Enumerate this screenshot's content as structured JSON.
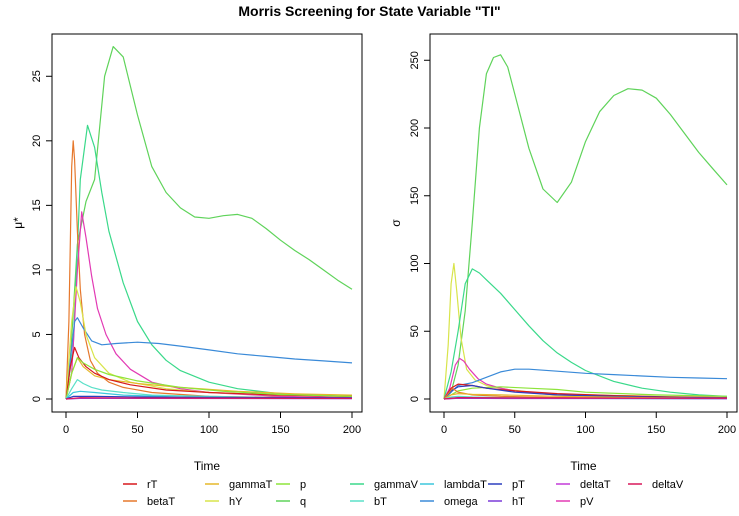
{
  "title": "Morris Screening for State Variable \"TI\"",
  "legend": [
    {
      "name": "rT",
      "color": "#d7191c"
    },
    {
      "name": "betaT",
      "color": "#e6782c"
    },
    {
      "name": "gammaT",
      "color": "#e5b82a"
    },
    {
      "name": "hY",
      "color": "#d8e44a"
    },
    {
      "name": "p",
      "color": "#8de43a"
    },
    {
      "name": "q",
      "color": "#5fd35a"
    },
    {
      "name": "gammaV",
      "color": "#3ad98a"
    },
    {
      "name": "bT",
      "color": "#5ae0c8"
    },
    {
      "name": "lambdaT",
      "color": "#3cc7dc"
    },
    {
      "name": "omega",
      "color": "#3a8ad8"
    },
    {
      "name": "pT",
      "color": "#2c3fbf"
    },
    {
      "name": "hT",
      "color": "#7a3ad8"
    },
    {
      "name": "deltaT",
      "color": "#c23ad8"
    },
    {
      "name": "pV",
      "color": "#e23ab4"
    },
    {
      "name": "deltaV",
      "color": "#d8195a"
    }
  ],
  "chart_data": [
    {
      "type": "line",
      "xlabel": "Time",
      "ylabel": "μ*",
      "xlim": [
        0,
        200
      ],
      "ylim": [
        0,
        27.5
      ],
      "xticks": [
        "0",
        "50",
        "100",
        "150",
        "200"
      ],
      "yticks": [
        "0",
        "5",
        "10",
        "15",
        "20",
        "25"
      ],
      "series": [
        {
          "name": "q",
          "color": "#5fd35a",
          "x": [
            0,
            3,
            8,
            14,
            20,
            27,
            33,
            40,
            50,
            60,
            70,
            80,
            90,
            100,
            110,
            120,
            130,
            140,
            150,
            160,
            170,
            180,
            190,
            200
          ],
          "y": [
            0,
            3,
            12,
            15.3,
            17,
            25,
            27.3,
            26.5,
            22,
            18,
            16,
            14.8,
            14.1,
            14,
            14.2,
            14.3,
            14,
            13.2,
            12.3,
            11.5,
            10.8,
            10,
            9.2,
            8.5
          ]
        },
        {
          "name": "gammaV",
          "color": "#3ad98a",
          "x": [
            0,
            5,
            10,
            15,
            20,
            25,
            30,
            40,
            50,
            60,
            70,
            80,
            100,
            120,
            150,
            200
          ],
          "y": [
            0,
            4,
            17,
            21.2,
            19.5,
            16,
            13,
            9,
            6,
            4.2,
            3,
            2.2,
            1.3,
            0.8,
            0.4,
            0.2
          ]
        },
        {
          "name": "betaT",
          "color": "#e6782c",
          "x": [
            0,
            2,
            4,
            5,
            6,
            8,
            10,
            13,
            17,
            22,
            30,
            40,
            60,
            100,
            200
          ],
          "y": [
            0,
            6,
            18,
            20,
            18.5,
            13,
            8.5,
            5,
            3,
            2,
            1.3,
            0.9,
            0.5,
            0.2,
            0.05
          ]
        },
        {
          "name": "pV",
          "color": "#e23ab4",
          "x": [
            0,
            4,
            8,
            11,
            14,
            18,
            22,
            28,
            35,
            45,
            60,
            80,
            100,
            150,
            200
          ],
          "y": [
            0,
            2,
            10,
            14.5,
            12.5,
            9.5,
            7,
            5,
            3.5,
            2.3,
            1.3,
            0.8,
            0.5,
            0.2,
            0.1
          ]
        },
        {
          "name": "omega",
          "color": "#3a8ad8",
          "x": [
            0,
            3,
            6,
            8,
            12,
            18,
            25,
            35,
            50,
            65,
            80,
            100,
            120,
            140,
            160,
            180,
            200
          ],
          "y": [
            0,
            3,
            6,
            6.3,
            5.5,
            4.5,
            4.2,
            4.3,
            4.4,
            4.3,
            4.1,
            3.8,
            3.5,
            3.3,
            3.1,
            2.95,
            2.8
          ]
        },
        {
          "name": "hY",
          "color": "#d8e44a",
          "x": [
            0,
            4,
            7,
            10,
            14,
            20,
            30,
            45,
            70,
            100,
            150,
            200
          ],
          "y": [
            0,
            6,
            8.7,
            7.5,
            5,
            3.2,
            2,
            1.3,
            0.8,
            0.5,
            0.3,
            0.2
          ]
        },
        {
          "name": "gammaT",
          "color": "#e5b82a",
          "x": [
            0,
            4,
            8,
            12,
            20,
            30,
            50,
            80,
            120,
            160,
            200
          ],
          "y": [
            0,
            2,
            3.2,
            2.5,
            1.8,
            1.5,
            1.2,
            0.9,
            0.6,
            0.4,
            0.3
          ]
        },
        {
          "name": "rT",
          "color": "#d7191c",
          "x": [
            0,
            3,
            6,
            9,
            14,
            20,
            30,
            45,
            70,
            100,
            150,
            200
          ],
          "y": [
            0,
            2.5,
            4,
            3.2,
            2.5,
            2,
            1.5,
            1.1,
            0.7,
            0.5,
            0.3,
            0.2
          ]
        },
        {
          "name": "p",
          "color": "#8de43a",
          "x": [
            0,
            4,
            8,
            12,
            20,
            30,
            50,
            80,
            110,
            150,
            200
          ],
          "y": [
            0,
            2,
            3.2,
            2.8,
            2.3,
            1.9,
            1.4,
            0.9,
            0.6,
            0.35,
            0.2
          ]
        },
        {
          "name": "bT",
          "color": "#5ae0c8",
          "x": [
            0,
            4,
            8,
            12,
            18,
            25,
            40,
            60,
            100,
            150,
            200
          ],
          "y": [
            0,
            0.8,
            1.5,
            1.2,
            0.9,
            0.7,
            0.5,
            0.3,
            0.2,
            0.1,
            0.05
          ]
        },
        {
          "name": "lambdaT",
          "color": "#3cc7dc",
          "x": [
            0,
            5,
            10,
            20,
            40,
            80,
            200
          ],
          "y": [
            0,
            0.5,
            0.6,
            0.5,
            0.3,
            0.15,
            0.05
          ]
        },
        {
          "name": "pT",
          "color": "#2c3fbf",
          "x": [
            0,
            5,
            20,
            60,
            120,
            200
          ],
          "y": [
            0,
            0.2,
            0.2,
            0.15,
            0.12,
            0.1
          ]
        },
        {
          "name": "hT",
          "color": "#7a3ad8",
          "x": [
            0,
            10,
            50,
            200
          ],
          "y": [
            0,
            0.05,
            0.05,
            0.03
          ]
        },
        {
          "name": "deltaT",
          "color": "#c23ad8",
          "x": [
            0,
            10,
            50,
            200
          ],
          "y": [
            0,
            0.08,
            0.06,
            0.04
          ]
        },
        {
          "name": "deltaV",
          "color": "#d8195a",
          "x": [
            0,
            10,
            50,
            200
          ],
          "y": [
            0,
            0.1,
            0.08,
            0.05
          ]
        }
      ]
    },
    {
      "type": "line",
      "xlabel": "Time",
      "ylabel": "σ",
      "xlim": [
        0,
        200
      ],
      "ylim": [
        0,
        262
      ],
      "xticks": [
        "0",
        "50",
        "100",
        "150",
        "200"
      ],
      "yticks": [
        "0",
        "50",
        "100",
        "150",
        "200",
        "250"
      ],
      "series": [
        {
          "name": "q",
          "color": "#5fd35a",
          "x": [
            0,
            5,
            10,
            15,
            20,
            25,
            30,
            35,
            40,
            45,
            50,
            60,
            70,
            80,
            90,
            100,
            110,
            120,
            130,
            140,
            150,
            160,
            170,
            180,
            190,
            200
          ],
          "y": [
            0,
            5,
            25,
            65,
            130,
            200,
            240,
            252,
            254,
            245,
            225,
            185,
            155,
            145,
            160,
            190,
            212,
            224,
            229,
            228,
            222,
            210,
            196,
            182,
            170,
            158
          ]
        },
        {
          "name": "hY",
          "color": "#d8e44a",
          "x": [
            0,
            3,
            5,
            7,
            9,
            12,
            16,
            22,
            30,
            45,
            70,
            100,
            150,
            200
          ],
          "y": [
            0,
            40,
            85,
            100,
            80,
            45,
            22,
            14,
            10,
            7,
            4,
            3,
            2,
            1
          ]
        },
        {
          "name": "gammaV",
          "color": "#3ad98a",
          "x": [
            0,
            5,
            10,
            15,
            20,
            25,
            30,
            40,
            50,
            60,
            70,
            80,
            90,
            100,
            120,
            140,
            160,
            180,
            200
          ],
          "y": [
            0,
            20,
            50,
            85,
            96,
            93,
            88,
            78,
            66,
            54,
            43,
            34,
            27,
            21,
            13,
            8,
            5,
            3,
            2
          ]
        },
        {
          "name": "pV",
          "color": "#e23ab4",
          "x": [
            0,
            4,
            8,
            11,
            14,
            18,
            24,
            30,
            40,
            55,
            80,
            110,
            150,
            200
          ],
          "y": [
            0,
            8,
            25,
            30,
            28,
            22,
            15,
            11,
            8,
            5,
            3,
            2,
            1,
            0.5
          ]
        },
        {
          "name": "omega",
          "color": "#3a8ad8",
          "x": [
            0,
            5,
            10,
            20,
            30,
            40,
            50,
            60,
            80,
            100,
            120,
            140,
            160,
            180,
            200
          ],
          "y": [
            0,
            5,
            10,
            12,
            16,
            20,
            22,
            22,
            20.5,
            19,
            18,
            17,
            16,
            15.5,
            15
          ]
        },
        {
          "name": "p",
          "color": "#8de43a",
          "x": [
            0,
            5,
            10,
            20,
            40,
            60,
            80,
            100,
            150,
            200
          ],
          "y": [
            0,
            3,
            6,
            8,
            9,
            8,
            7,
            5,
            3,
            2
          ]
        },
        {
          "name": "rT",
          "color": "#d7191c",
          "x": [
            0,
            5,
            10,
            20,
            30,
            50,
            80,
            120,
            160,
            200
          ],
          "y": [
            0,
            8,
            11,
            10,
            8,
            6,
            4,
            2.5,
            1.5,
            1
          ]
        },
        {
          "name": "pT",
          "color": "#2c3fbf",
          "x": [
            0,
            5,
            10,
            20,
            30,
            50,
            80,
            120,
            160,
            200
          ],
          "y": [
            0,
            6,
            9,
            10,
            8,
            5,
            3,
            2,
            1.2,
            0.8
          ]
        },
        {
          "name": "betaT",
          "color": "#e6782c",
          "x": [
            0,
            3,
            6,
            10,
            20,
            40,
            80,
            200
          ],
          "y": [
            0,
            4,
            8,
            5,
            3,
            2,
            1,
            0.5
          ]
        },
        {
          "name": "gammaT",
          "color": "#e5b82a",
          "x": [
            0,
            5,
            10,
            20,
            40,
            80,
            140,
            200
          ],
          "y": [
            0,
            3,
            4,
            3.5,
            3,
            2,
            1,
            0.5
          ]
        },
        {
          "name": "bT",
          "color": "#5ae0c8",
          "x": [
            0,
            5,
            10,
            20,
            40,
            80,
            200
          ],
          "y": [
            0,
            1.5,
            2,
            1.5,
            1,
            0.5,
            0.2
          ]
        },
        {
          "name": "lambdaT",
          "color": "#3cc7dc",
          "x": [
            0,
            10,
            50,
            200
          ],
          "y": [
            0,
            1,
            0.5,
            0.2
          ]
        },
        {
          "name": "hT",
          "color": "#7a3ad8",
          "x": [
            0,
            10,
            50,
            200
          ],
          "y": [
            0,
            0.5,
            0.4,
            0.3
          ]
        },
        {
          "name": "deltaT",
          "color": "#c23ad8",
          "x": [
            0,
            10,
            50,
            200
          ],
          "y": [
            0,
            0.8,
            0.6,
            0.4
          ]
        },
        {
          "name": "deltaV",
          "color": "#d8195a",
          "x": [
            0,
            10,
            50,
            200
          ],
          "y": [
            0,
            1,
            0.8,
            0.5
          ]
        }
      ]
    }
  ]
}
